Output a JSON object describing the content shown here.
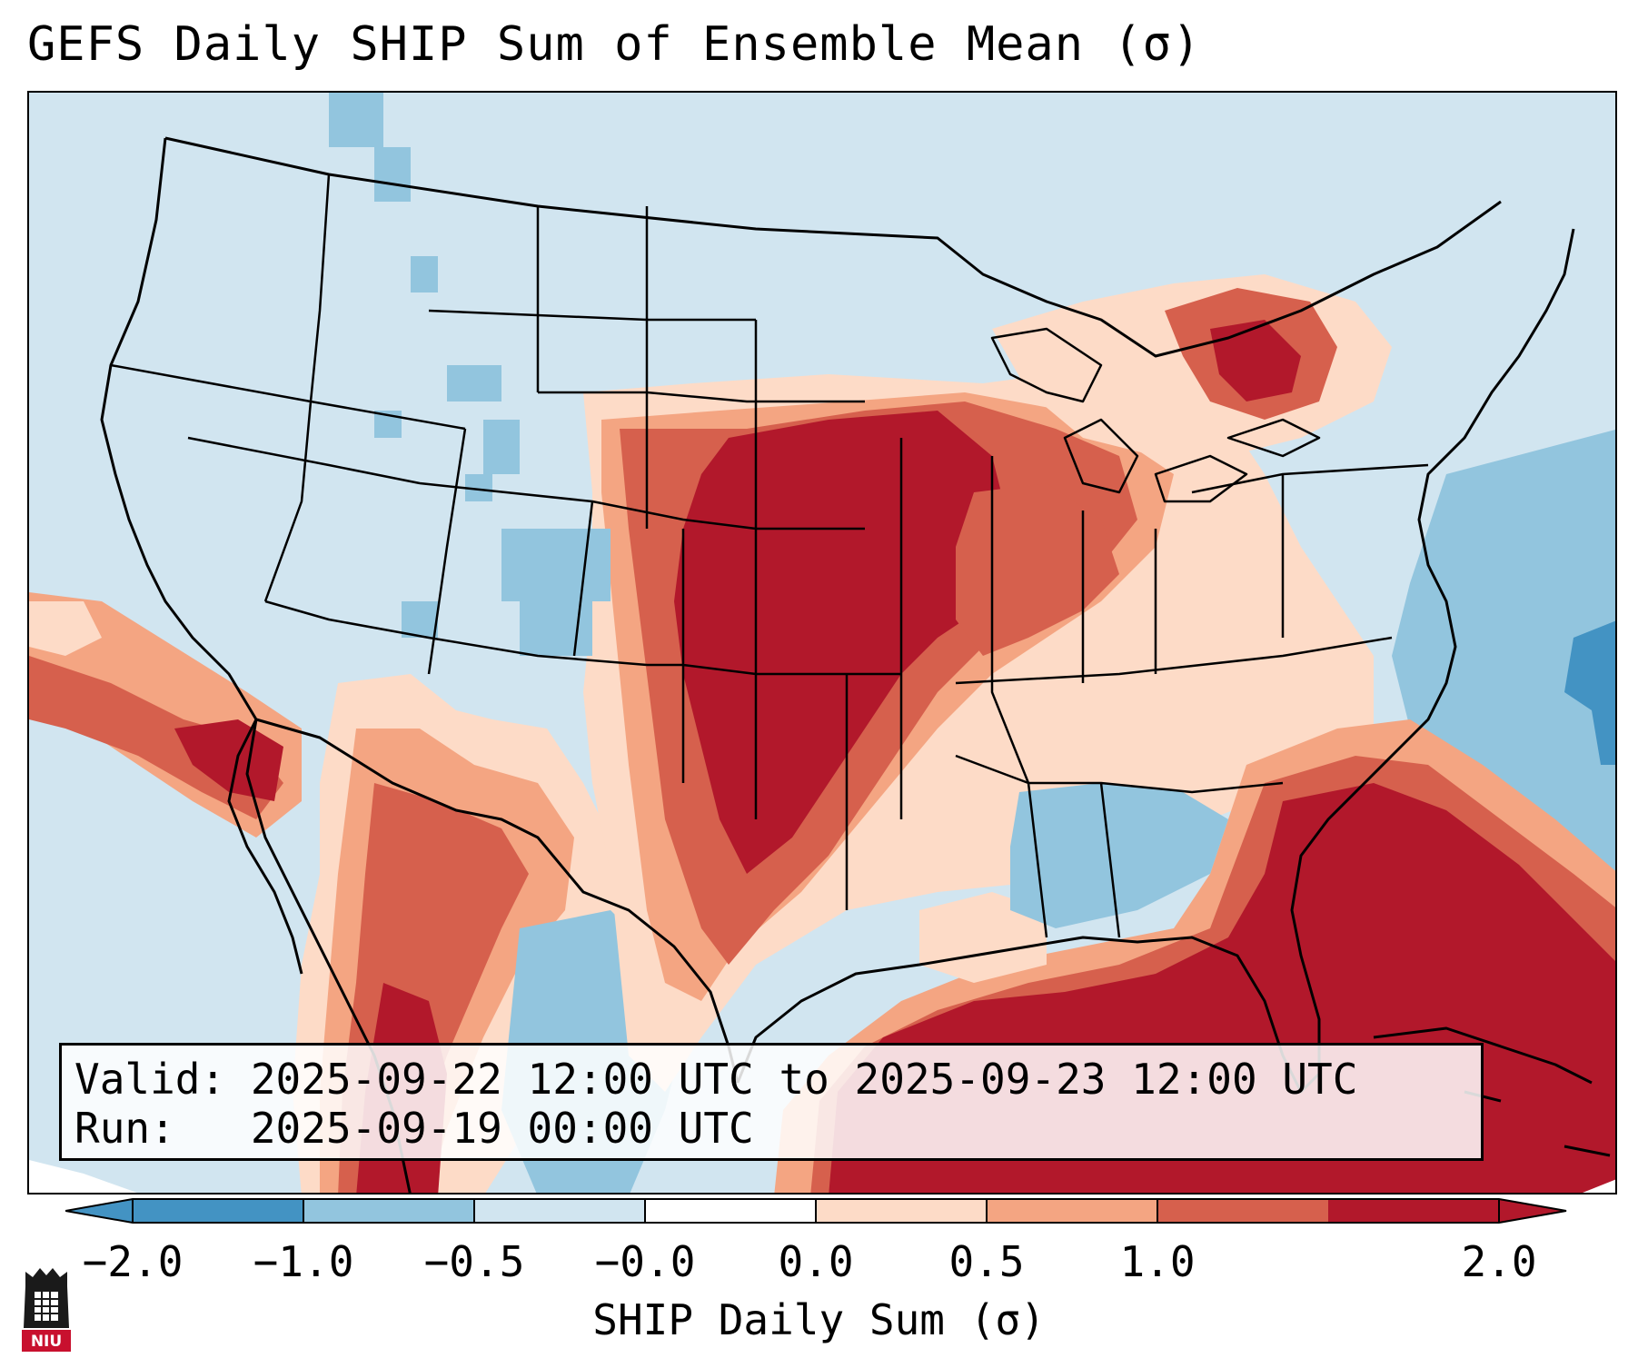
{
  "title": "GEFS Daily SHIP Sum of Ensemble Mean (σ)",
  "info": {
    "valid": "Valid: 2025-09-22 12:00 UTC to 2025-09-23 12:00 UTC",
    "run": "Run:   2025-09-19 00:00 UTC"
  },
  "colorbar": {
    "label": "SHIP Daily Sum (σ)",
    "ticks": [
      "−2.0",
      "−1.0",
      "−0.5",
      "−0.0",
      "0.0",
      "0.5",
      "1.0",
      "2.0"
    ],
    "colors": [
      "#4393c3",
      "#92c5de",
      "#d1e5f0",
      "#ffffff",
      "#fddbc7",
      "#f4a582",
      "#d6604d",
      "#b2182b"
    ],
    "extend": "both"
  },
  "logo": {
    "text": "NIU",
    "color": "#c8102e"
  },
  "map": {
    "background_color": "#d1e5f0",
    "regions": [
      {
        "name": "upper-midwest-core",
        "level": 2.0
      },
      {
        "name": "southeast-gulf-core",
        "level": 2.0
      },
      {
        "name": "great-lakes-quebec",
        "level": 1.0
      },
      {
        "name": "southwest-mexico",
        "level": 1.0
      },
      {
        "name": "southeast-atlantic-blue",
        "level": -1.0
      },
      {
        "name": "western-speckles",
        "level": -1.0
      }
    ]
  }
}
